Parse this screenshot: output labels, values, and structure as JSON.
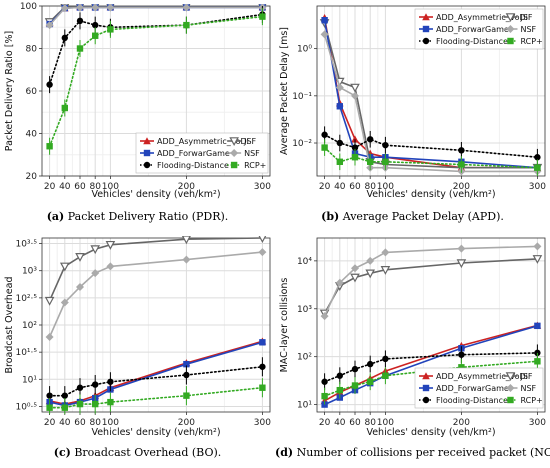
{
  "charts": [
    {
      "caption": "Packet Delivery Ratio (PDR).",
      "caption_tag": "(a)",
      "chart_data": {
        "type": "line",
        "x": [
          20,
          40,
          60,
          80,
          100,
          200,
          300
        ],
        "xticks": [
          20,
          40,
          60,
          80,
          100,
          200,
          300
        ],
        "xlabel": "Vehicles' density (veh/km²)",
        "ylabel": "Packet Delivery Ratio [%]",
        "yscale": "linear",
        "ylim": [
          20,
          100
        ],
        "yticks": [
          20,
          40,
          60,
          80,
          100
        ],
        "ytick_labels": [
          "20",
          "40",
          "60",
          "80",
          "100"
        ],
        "grid": true,
        "legend_position": "bottom-right",
        "legend_cols": 2,
        "series": [
          {
            "name": "ADD_Asymmetric_VoDi",
            "color": "#cc2222",
            "marker": "triangle-up",
            "dash": "solid",
            "values": [
              92,
              99,
              99.5,
              99.5,
              99.5,
              99.5,
              99.5
            ]
          },
          {
            "name": "JSF",
            "color": "#666666",
            "marker": "triangle-down",
            "dash": "solid",
            "values": [
              92.5,
              99.5,
              99.8,
              99.8,
              99.8,
              99.8,
              99.8
            ]
          },
          {
            "name": "ADD_ForwarGame",
            "color": "#2244bb",
            "marker": "square",
            "dash": "solid",
            "values": [
              91.5,
              99,
              99.3,
              99.3,
              99.3,
              99.3,
              99.3
            ]
          },
          {
            "name": "NSF",
            "color": "#aaaaaa",
            "marker": "diamond",
            "dash": "solid",
            "values": [
              91,
              99,
              99.3,
              99.3,
              99.3,
              99.3,
              99.3
            ]
          },
          {
            "name": "Flooding-Distance",
            "color": "#000000",
            "marker": "circle",
            "dash": "dotted",
            "values": [
              63,
              85,
              93,
              91,
              90,
              91,
              96
            ]
          },
          {
            "name": "RCP+",
            "color": "#33aa22",
            "marker": "square",
            "dash": "dotted",
            "values": [
              34,
              52,
              80,
              86,
              89,
              91,
              95
            ]
          }
        ]
      }
    },
    {
      "caption": "Average Packet Delay (APD).",
      "caption_tag": "(b)",
      "chart_data": {
        "type": "line",
        "x": [
          20,
          40,
          60,
          80,
          100,
          200,
          300
        ],
        "xticks": [
          20,
          40,
          60,
          80,
          100,
          200,
          300
        ],
        "xlabel": "Vehicles' density (veh/km²)",
        "ylabel": "Average Packet Delay [ms]",
        "yscale": "log",
        "ylim": [
          0.002,
          8
        ],
        "yticks": [
          0.01,
          0.1,
          1
        ],
        "ytick_labels": [
          "10⁻²",
          "10⁻¹",
          "10⁰"
        ],
        "grid": true,
        "legend_position": "top-right",
        "legend_cols": 2,
        "series": [
          {
            "name": "ADD_Asymmetric_VoDi",
            "color": "#cc2222",
            "marker": "triangle-up",
            "dash": "solid",
            "values": [
              4.5,
              0.07,
              0.012,
              0.006,
              0.005,
              0.003,
              0.003
            ]
          },
          {
            "name": "JSF",
            "color": "#666666",
            "marker": "triangle-down",
            "dash": "solid",
            "values": [
              3.5,
              0.2,
              0.15,
              0.004,
              0.0035,
              0.003,
              0.003
            ]
          },
          {
            "name": "ADD_ForwarGame",
            "color": "#2244bb",
            "marker": "square",
            "dash": "solid",
            "values": [
              4,
              0.06,
              0.006,
              0.005,
              0.005,
              0.004,
              0.003
            ]
          },
          {
            "name": "NSF",
            "color": "#aaaaaa",
            "marker": "diamond",
            "dash": "solid",
            "values": [
              2,
              0.15,
              0.1,
              0.003,
              0.003,
              0.0025,
              0.0025
            ]
          },
          {
            "name": "Flooding-Distance",
            "color": "#000000",
            "marker": "circle",
            "dash": "dotted",
            "values": [
              0.015,
              0.01,
              0.008,
              0.012,
              0.009,
              0.007,
              0.005
            ]
          },
          {
            "name": "RCP+",
            "color": "#33aa22",
            "marker": "square",
            "dash": "dotted",
            "values": [
              0.008,
              0.004,
              0.005,
              0.004,
              0.004,
              0.0035,
              0.003
            ]
          }
        ]
      }
    },
    {
      "caption": "Broadcast Overhead (BO).",
      "caption_tag": "(c)",
      "chart_data": {
        "type": "line",
        "x": [
          20,
          40,
          60,
          80,
          100,
          200,
          300
        ],
        "xticks": [
          20,
          40,
          60,
          80,
          100,
          200,
          300
        ],
        "xlabel": "Vehicles' density (veh/km²)",
        "ylabel": "Broadcast Overhead",
        "yscale": "log",
        "ylim": [
          2.5,
          4000
        ],
        "yticks": [
          3.16,
          10,
          31.6,
          100,
          316,
          1000,
          3162
        ],
        "ytick_labels": [
          "10⁰·⁵",
          "10¹",
          "10¹·⁵",
          "10²",
          "10²·⁵",
          "10³",
          "10³·⁵"
        ],
        "grid": true,
        "legend_position": "none",
        "legend_cols": 0,
        "series": [
          {
            "name": "ADD_Asymmetric_VoDi",
            "color": "#cc2222",
            "marker": "triangle-up",
            "dash": "solid",
            "values": [
              4,
              3.5,
              4,
              5,
              7,
              20,
              50
            ]
          },
          {
            "name": "JSF",
            "color": "#666666",
            "marker": "triangle-down",
            "dash": "solid",
            "values": [
              280,
              1200,
              1800,
              2500,
              3000,
              3800,
              4000
            ]
          },
          {
            "name": "ADD_ForwarGame",
            "color": "#2244bb",
            "marker": "square",
            "dash": "solid",
            "values": [
              3.8,
              3.3,
              3.8,
              4.5,
              6.5,
              19,
              48
            ]
          },
          {
            "name": "NSF",
            "color": "#aaaaaa",
            "marker": "diamond",
            "dash": "solid",
            "values": [
              60,
              260,
              500,
              900,
              1200,
              1600,
              2200
            ]
          },
          {
            "name": "Flooding-Distance",
            "color": "#000000",
            "marker": "circle",
            "dash": "dotted",
            "values": [
              5,
              5,
              7,
              8,
              9,
              12,
              17
            ]
          },
          {
            "name": "RCP+",
            "color": "#33aa22",
            "marker": "square",
            "dash": "dotted",
            "values": [
              3,
              3,
              3.5,
              3.5,
              3.8,
              5,
              7
            ]
          }
        ]
      }
    },
    {
      "caption": "Number of collisions per received packet (NCP).",
      "caption_tag": "(d)",
      "chart_data": {
        "type": "line",
        "x": [
          20,
          40,
          60,
          80,
          100,
          200,
          300
        ],
        "xticks": [
          20,
          40,
          60,
          80,
          100,
          200,
          300
        ],
        "xlabel": "Vehicles' density (veh/km²)",
        "ylabel": "MAC-layer collisions",
        "yscale": "log",
        "ylim": [
          7,
          30000
        ],
        "yticks": [
          10,
          100,
          1000,
          10000
        ],
        "ytick_labels": [
          "10¹",
          "10²",
          "10³",
          "10⁴"
        ],
        "grid": true,
        "legend_position": "bottom-right",
        "legend_cols": 2,
        "series": [
          {
            "name": "ADD_Asymmetric_VoDi",
            "color": "#cc2222",
            "marker": "triangle-up",
            "dash": "solid",
            "values": [
              12,
              18,
              25,
              35,
              50,
              170,
              450
            ]
          },
          {
            "name": "JSF",
            "color": "#666666",
            "marker": "triangle-down",
            "dash": "solid",
            "values": [
              800,
              3000,
              4500,
              5500,
              6500,
              9000,
              11000
            ]
          },
          {
            "name": "ADD_ForwarGame",
            "color": "#2244bb",
            "marker": "square",
            "dash": "solid",
            "values": [
              10,
              14,
              20,
              28,
              40,
              150,
              440
            ]
          },
          {
            "name": "NSF",
            "color": "#aaaaaa",
            "marker": "diamond",
            "dash": "solid",
            "values": [
              700,
              3500,
              7000,
              10000,
              15000,
              18000,
              20000
            ]
          },
          {
            "name": "Flooding-Distance",
            "color": "#000000",
            "marker": "circle",
            "dash": "dotted",
            "values": [
              30,
              40,
              55,
              70,
              90,
              110,
              120
            ]
          },
          {
            "name": "RCP+",
            "color": "#33aa22",
            "marker": "square",
            "dash": "dotted",
            "values": [
              15,
              20,
              25,
              30,
              40,
              60,
              80
            ]
          }
        ]
      }
    }
  ]
}
